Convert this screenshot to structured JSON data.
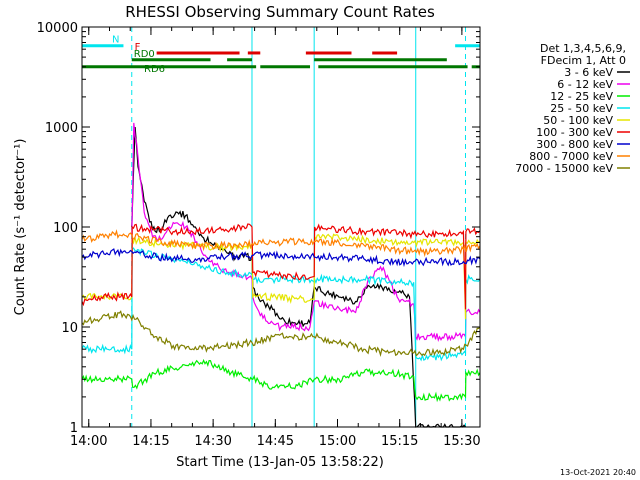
{
  "chart_data": {
    "type": "line",
    "title": "RHESSI Observing Summary Count Rates",
    "xlabel": "Start Time (13-Jan-05 13:58:22)",
    "ylabel": "Count Rate (s⁻¹ detector⁻¹)",
    "yscale": "log",
    "ylim": [
      1,
      10000
    ],
    "xlim_minutes": [
      0,
      96
    ],
    "x_tick_labels": [
      "14:00",
      "14:15",
      "14:30",
      "14:45",
      "15:00",
      "15:15",
      "15:30"
    ],
    "x_tick_minutes": [
      1.63,
      16.63,
      31.63,
      46.63,
      61.63,
      76.63,
      91.63
    ],
    "y_tick_labels": [
      "1",
      "10",
      "100",
      "1000",
      "10000"
    ],
    "y_tick_values": [
      1,
      10,
      100,
      1000,
      10000
    ],
    "legend_header": [
      "Det 1,3,4,5,6,9,",
      "FDecim 1, Att 0"
    ],
    "timestamp": "13-Oct-2021 20:40",
    "flags": [
      {
        "label": "N",
        "color": "#00e5ee",
        "y": 6500,
        "segments": [
          [
            0,
            10
          ],
          [
            90,
            96
          ]
        ]
      },
      {
        "label": "F",
        "color": "#dd0000",
        "y": 5500,
        "segments": [
          [
            18,
            38
          ],
          [
            40,
            43
          ],
          [
            54,
            65
          ],
          [
            70,
            76
          ]
        ]
      },
      {
        "label": "RD0",
        "color": "#007700",
        "y": 4700,
        "segments": [
          [
            12,
            31
          ],
          [
            35,
            41
          ],
          [
            56,
            88
          ]
        ]
      },
      {
        "label": "RD6",
        "color": "#007700",
        "y": 4000,
        "segments": [
          [
            0,
            42
          ],
          [
            43,
            55
          ],
          [
            57,
            93
          ],
          [
            94,
            96
          ]
        ]
      }
    ],
    "vlines": [
      {
        "minute": 0,
        "style": "solid"
      },
      {
        "minute": 12,
        "style": "dashed"
      },
      {
        "minute": 41,
        "style": "solid"
      },
      {
        "minute": 56,
        "style": "solid"
      },
      {
        "minute": 80.5,
        "style": "solid"
      },
      {
        "minute": 92.5,
        "style": "dashed"
      }
    ],
    "series": [
      {
        "name": "3 - 6 keV",
        "color": "#000000",
        "points": [
          [
            12,
            100
          ],
          [
            12.8,
            1000
          ],
          [
            13.5,
            400
          ],
          [
            15,
            180
          ],
          [
            17,
            95
          ],
          [
            19,
            95
          ],
          [
            21,
            130
          ],
          [
            23,
            140
          ],
          [
            25,
            130
          ],
          [
            27,
            100
          ],
          [
            29,
            80
          ],
          [
            31,
            70
          ],
          [
            33,
            60
          ],
          [
            35,
            55
          ],
          [
            37,
            50
          ],
          [
            39,
            50
          ],
          [
            41,
            50
          ],
          [
            41.2,
            25
          ],
          [
            43,
            18
          ],
          [
            46,
            15
          ],
          [
            48,
            12
          ],
          [
            51,
            11
          ],
          [
            55,
            11
          ],
          [
            56,
            25
          ],
          [
            59,
            22
          ],
          [
            63,
            20
          ],
          [
            66,
            18
          ],
          [
            69,
            26
          ],
          [
            71,
            25
          ],
          [
            73,
            25
          ],
          [
            75,
            22
          ],
          [
            77,
            22
          ],
          [
            79,
            20
          ],
          [
            80.5,
            1
          ],
          [
            92.5,
            1
          ]
        ]
      },
      {
        "name": "6 - 12 keV",
        "color": "#ee00ee",
        "points": [
          [
            12,
            80
          ],
          [
            12.5,
            1100
          ],
          [
            13.5,
            500
          ],
          [
            15,
            140
          ],
          [
            17,
            80
          ],
          [
            19,
            75
          ],
          [
            21,
            100
          ],
          [
            23,
            110
          ],
          [
            25,
            100
          ],
          [
            27,
            80
          ],
          [
            29,
            55
          ],
          [
            31,
            45
          ],
          [
            33,
            40
          ],
          [
            35,
            35
          ],
          [
            37,
            35
          ],
          [
            39,
            33
          ],
          [
            41,
            30
          ],
          [
            41.2,
            20
          ],
          [
            43,
            13
          ],
          [
            46,
            11
          ],
          [
            48,
            10
          ],
          [
            51,
            10
          ],
          [
            55,
            10
          ],
          [
            56,
            18
          ],
          [
            59,
            16
          ],
          [
            63,
            15
          ],
          [
            66,
            14
          ],
          [
            69,
            30
          ],
          [
            72,
            40
          ],
          [
            74,
            30
          ],
          [
            76,
            20
          ],
          [
            78,
            18
          ],
          [
            80,
            17
          ],
          [
            80.5,
            8
          ],
          [
            82,
            8
          ],
          [
            92.5,
            8
          ],
          [
            92.6,
            14
          ],
          [
            96,
            14
          ]
        ]
      },
      {
        "name": "12 - 25 keV",
        "color": "#00ee00",
        "points": [
          [
            0,
            3
          ],
          [
            6,
            3
          ],
          [
            12,
            3
          ],
          [
            12.2,
            2.5
          ],
          [
            18,
            3.5
          ],
          [
            24,
            4
          ],
          [
            30,
            4.5
          ],
          [
            36,
            3.5
          ],
          [
            41,
            3
          ],
          [
            41.2,
            3
          ],
          [
            46,
            2.5
          ],
          [
            52,
            2.6
          ],
          [
            56,
            3
          ],
          [
            62,
            3
          ],
          [
            68,
            3.5
          ],
          [
            74,
            3.5
          ],
          [
            80,
            3.2
          ],
          [
            80.5,
            2
          ],
          [
            86,
            2
          ],
          [
            92.5,
            2
          ],
          [
            92.6,
            3.5
          ],
          [
            96,
            3.5
          ]
        ]
      },
      {
        "name": "25 - 50 keV",
        "color": "#00e5ee",
        "points": [
          [
            0,
            6
          ],
          [
            6,
            6
          ],
          [
            12,
            6
          ],
          [
            12.1,
            60
          ],
          [
            15,
            55
          ],
          [
            20,
            50
          ],
          [
            25,
            45
          ],
          [
            30,
            40
          ],
          [
            35,
            35
          ],
          [
            40,
            33
          ],
          [
            41,
            33
          ],
          [
            41.2,
            30
          ],
          [
            46,
            30
          ],
          [
            52,
            30
          ],
          [
            56,
            28
          ],
          [
            56.1,
            30
          ],
          [
            62,
            30
          ],
          [
            68,
            30
          ],
          [
            74,
            28
          ],
          [
            80,
            28
          ],
          [
            80.5,
            5
          ],
          [
            86,
            5
          ],
          [
            92,
            5.5
          ],
          [
            92.5,
            5.5
          ],
          [
            92.6,
            30
          ],
          [
            96,
            30
          ]
        ]
      },
      {
        "name": "50 - 100 keV",
        "color": "#e5e500",
        "points": [
          [
            0,
            20
          ],
          [
            6,
            20
          ],
          [
            12,
            20
          ],
          [
            12.1,
            75
          ],
          [
            16,
            70
          ],
          [
            20,
            68
          ],
          [
            26,
            65
          ],
          [
            32,
            63
          ],
          [
            38,
            63
          ],
          [
            41,
            63
          ],
          [
            41.2,
            20
          ],
          [
            46,
            20
          ],
          [
            52,
            19
          ],
          [
            56,
            19
          ],
          [
            56.1,
            80
          ],
          [
            62,
            78
          ],
          [
            68,
            75
          ],
          [
            74,
            72
          ],
          [
            80,
            70
          ],
          [
            86,
            70
          ],
          [
            92,
            70
          ],
          [
            92.5,
            12
          ],
          [
            92.6,
            70
          ],
          [
            96,
            72
          ]
        ]
      },
      {
        "name": "100 - 300 keV",
        "color": "#ee0000",
        "points": [
          [
            0,
            18
          ],
          [
            6,
            20
          ],
          [
            12,
            20
          ],
          [
            12.1,
            100
          ],
          [
            16,
            95
          ],
          [
            22,
            90
          ],
          [
            28,
            90
          ],
          [
            34,
            95
          ],
          [
            41,
            100
          ],
          [
            41.2,
            35
          ],
          [
            46,
            33
          ],
          [
            52,
            32
          ],
          [
            56,
            32
          ],
          [
            56.1,
            100
          ],
          [
            62,
            95
          ],
          [
            68,
            90
          ],
          [
            74,
            88
          ],
          [
            80,
            85
          ],
          [
            86,
            85
          ],
          [
            92,
            90
          ],
          [
            92.5,
            15
          ],
          [
            92.6,
            90
          ],
          [
            96,
            92
          ]
        ]
      },
      {
        "name": "300 - 800 keV",
        "color": "#0000cc",
        "points": [
          [
            0,
            50
          ],
          [
            6,
            55
          ],
          [
            10,
            57
          ],
          [
            14,
            55
          ],
          [
            18,
            50
          ],
          [
            22,
            48
          ],
          [
            28,
            48
          ],
          [
            34,
            50
          ],
          [
            41,
            52
          ],
          [
            46,
            52
          ],
          [
            52,
            50
          ],
          [
            56,
            50
          ],
          [
            62,
            50
          ],
          [
            68,
            48
          ],
          [
            74,
            45
          ],
          [
            80,
            45
          ],
          [
            86,
            45
          ],
          [
            92,
            45
          ],
          [
            96,
            48
          ]
        ]
      },
      {
        "name": "800 - 7000 keV",
        "color": "#ff8000",
        "points": [
          [
            0,
            75
          ],
          [
            6,
            82
          ],
          [
            10,
            85
          ],
          [
            14,
            80
          ],
          [
            18,
            72
          ],
          [
            22,
            68
          ],
          [
            28,
            65
          ],
          [
            34,
            65
          ],
          [
            41,
            68
          ],
          [
            46,
            70
          ],
          [
            52,
            72
          ],
          [
            56,
            72
          ],
          [
            62,
            70
          ],
          [
            68,
            66
          ],
          [
            74,
            60
          ],
          [
            80,
            57
          ],
          [
            86,
            57
          ],
          [
            92,
            60
          ],
          [
            96,
            65
          ]
        ]
      },
      {
        "name": "7000 - 15000 keV",
        "color": "#808000",
        "points": [
          [
            0,
            11
          ],
          [
            6,
            13
          ],
          [
            10,
            13.5
          ],
          [
            14,
            11
          ],
          [
            18,
            8
          ],
          [
            22,
            6.5
          ],
          [
            28,
            6
          ],
          [
            34,
            6.5
          ],
          [
            41,
            7
          ],
          [
            46,
            8
          ],
          [
            52,
            8
          ],
          [
            56,
            8
          ],
          [
            62,
            7
          ],
          [
            68,
            6
          ],
          [
            74,
            5.5
          ],
          [
            80,
            5.5
          ],
          [
            86,
            5.5
          ],
          [
            92,
            6
          ],
          [
            96,
            10
          ]
        ]
      }
    ]
  }
}
